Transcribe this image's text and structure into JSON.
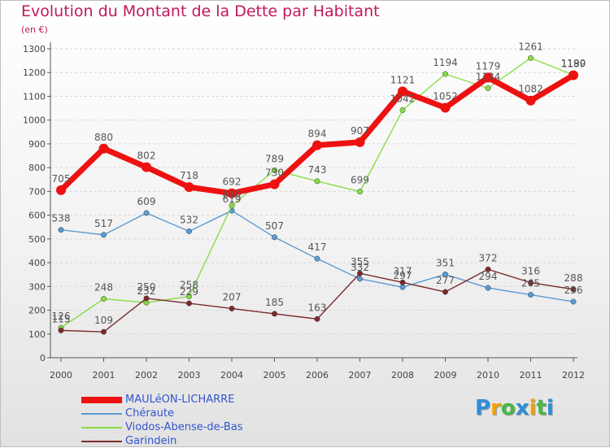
{
  "chart_data": {
    "type": "line",
    "title": "Evolution du Montant de la Dette par Habitant",
    "subtitle": "(en €)",
    "xlabel": "",
    "ylabel": "",
    "x": [
      "2000",
      "2001",
      "2002",
      "2003",
      "2004",
      "2005",
      "2006",
      "2007",
      "2008",
      "2009",
      "2010",
      "2011",
      "2012"
    ],
    "ylim": [
      0,
      1300
    ],
    "yticks": [
      0,
      100,
      200,
      300,
      400,
      500,
      600,
      700,
      800,
      900,
      1000,
      1100,
      1200,
      1300
    ],
    "grid": "dashed-horizontal",
    "legend_position": "bottom-left",
    "series": [
      {
        "name": "MAULéON-LICHARRE",
        "color": "#ee1111",
        "values": [
          705,
          880,
          802,
          718,
          692,
          730,
          894,
          907,
          1121,
          1052,
          1179,
          1082,
          1189
        ]
      },
      {
        "name": "Chéraute",
        "color": "#5a9bd5",
        "values": [
          538,
          517,
          609,
          532,
          619,
          507,
          417,
          332,
          297,
          351,
          294,
          265,
          236
        ]
      },
      {
        "name": "Viodos-Abense-de-Bas",
        "color": "#88dd44",
        "values": [
          126,
          248,
          232,
          258,
          640,
          789,
          743,
          699,
          1042,
          1194,
          1134,
          1261,
          1190
        ]
      },
      {
        "name": "Garindein",
        "color": "#7b2b2b",
        "values": [
          115,
          109,
          250,
          229,
          207,
          185,
          163,
          355,
          317,
          277,
          372,
          316,
          288
        ]
      }
    ],
    "data_labels": [
      {
        "series": 0,
        "labels": [
          "705",
          "880",
          "802",
          "718",
          "692",
          "730",
          "894",
          "907",
          "1121",
          "1052",
          "1179",
          "1082",
          "1189"
        ]
      },
      {
        "series": 1,
        "labels": [
          "538",
          "517",
          "609",
          "532",
          "619",
          "507",
          "417",
          "332",
          "297",
          "351",
          "294",
          "265",
          "236"
        ]
      },
      {
        "series": 2,
        "labels": [
          "126",
          "248",
          "232",
          "258",
          "640",
          "789",
          "743",
          "699",
          "1042",
          "1194",
          "1134",
          "1261",
          "1190"
        ]
      },
      {
        "series": 3,
        "labels": [
          "115",
          "109",
          "250",
          "229",
          "207",
          "185",
          "163",
          "355",
          "317",
          "277",
          "372",
          "316",
          "288"
        ]
      }
    ]
  },
  "logo": {
    "letters": [
      "P",
      "r",
      "o",
      "x",
      "i",
      "t",
      "i"
    ],
    "colors": [
      "#2f8fd8",
      "#f2a200",
      "#47b847",
      "#2f8fd8",
      "#f2a200",
      "#47b847",
      "#2f8fd8"
    ]
  }
}
